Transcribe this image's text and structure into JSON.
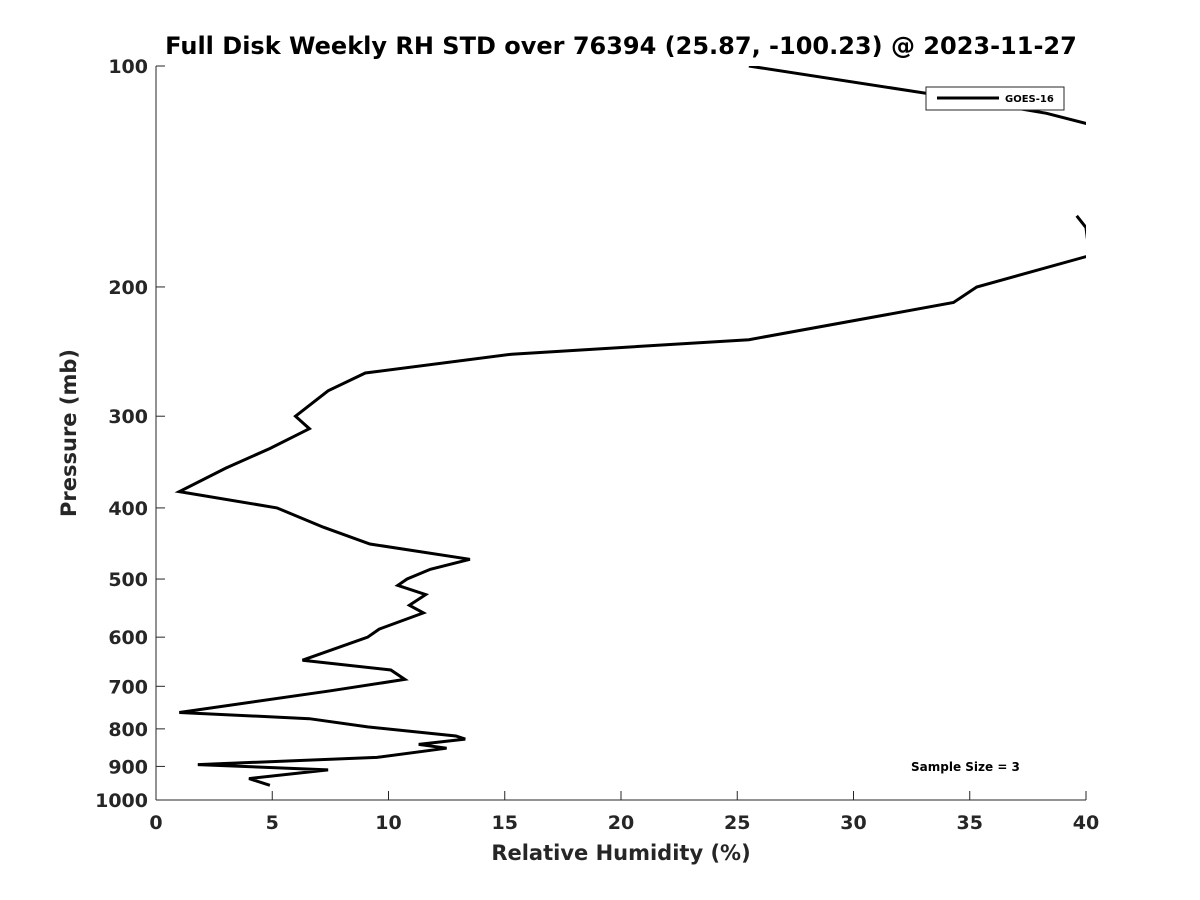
{
  "chart_data": {
    "type": "line",
    "title": "Full Disk Weekly RH STD over 76394 (25.87, -100.23) @ 2023-11-27",
    "xlabel": "Relative Humidity (%)",
    "ylabel": "Pressure (mb)",
    "xlim": [
      0,
      40
    ],
    "ylim": [
      100,
      1000
    ],
    "y_scale": "log",
    "y_reversed": true,
    "xticks": [
      0,
      5,
      10,
      15,
      20,
      25,
      30,
      35,
      40
    ],
    "yticks": [
      100,
      200,
      300,
      400,
      500,
      600,
      700,
      800,
      900,
      1000
    ],
    "legend": {
      "placement": "top-right"
    },
    "annotation": "Sample Size = 3",
    "grid": false,
    "series": [
      {
        "name": "GOES-16",
        "color": "#000000",
        "segments": [
          [
            [
              25.5,
              100
            ],
            [
              34.8,
              111
            ],
            [
              38.3,
              116
            ],
            [
              41,
              122
            ]
          ],
          [
            [
              39.6,
              160
            ],
            [
              40,
              166
            ],
            [
              40.1,
              176
            ]
          ],
          [
            [
              40.5,
              180
            ],
            [
              35.3,
              200
            ],
            [
              34.3,
              210
            ],
            [
              25.5,
              236
            ],
            [
              15.3,
              247
            ],
            [
              9,
              262
            ],
            [
              7.4,
              277
            ],
            [
              6,
              300
            ],
            [
              6.6,
              312
            ],
            [
              4.9,
              332
            ],
            [
              3,
              353
            ],
            [
              1,
              380
            ],
            [
              5.2,
              400
            ],
            [
              7.2,
              425
            ],
            [
              9.2,
              448
            ],
            [
              13.5,
              470
            ],
            [
              11.8,
              485
            ],
            [
              10.8,
              500
            ],
            [
              10.4,
              510
            ],
            [
              11.6,
              525
            ],
            [
              10.9,
              543
            ],
            [
              11.5,
              556
            ],
            [
              9.6,
              585
            ],
            [
              9.1,
              600
            ],
            [
              6.3,
              645
            ],
            [
              10.1,
              665
            ],
            [
              10.7,
              685
            ],
            [
              7.5,
              710
            ],
            [
              1.0,
              760
            ],
            [
              6.6,
              775
            ],
            [
              9.1,
              795
            ],
            [
              12.9,
              818
            ],
            [
              13.3,
              826
            ],
            [
              11.3,
              840
            ],
            [
              12.5,
              850
            ],
            [
              9.5,
              875
            ],
            [
              1.8,
              895
            ],
            [
              7.4,
              910
            ],
            [
              4,
              935
            ],
            [
              4.9,
              955
            ]
          ]
        ]
      }
    ]
  }
}
